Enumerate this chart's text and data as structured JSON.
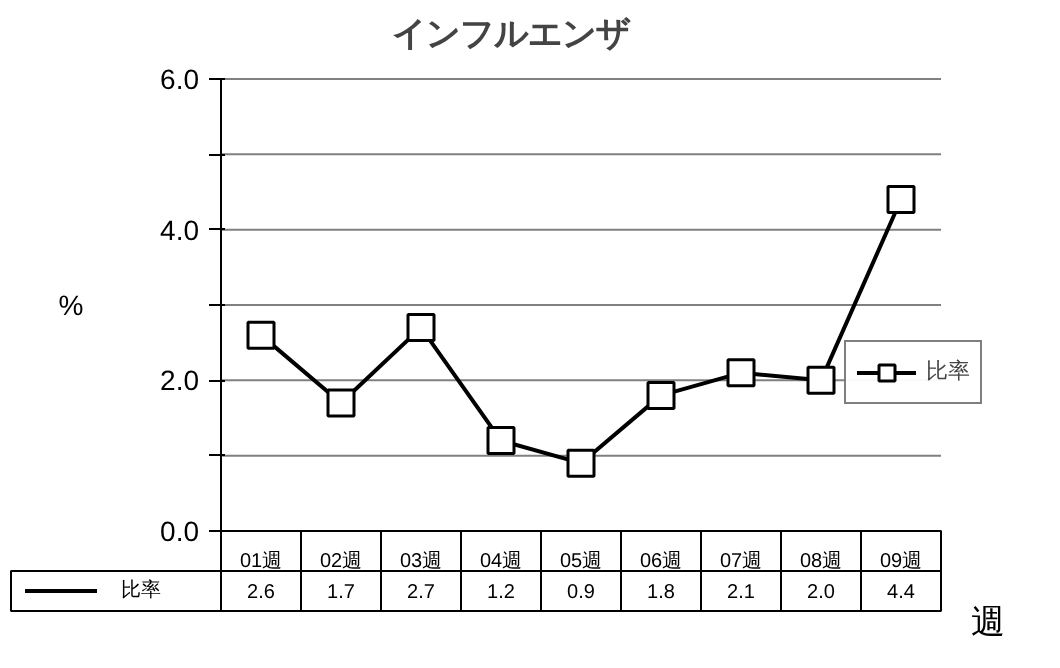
{
  "chart_data": {
    "type": "line",
    "title": "インフルエンザ",
    "xlabel": "週",
    "ylabel": "%",
    "categories": [
      "01週",
      "02週",
      "03週",
      "04週",
      "05週",
      "06週",
      "07週",
      "08週",
      "09週"
    ],
    "series": [
      {
        "name": "比率",
        "color": "#000000",
        "values": [
          2.6,
          1.7,
          2.7,
          1.2,
          0.9,
          1.8,
          2.1,
          2.0,
          4.4
        ],
        "value_labels": [
          "2.6",
          "1.7",
          "2.7",
          "1.2",
          "0.9",
          "1.8",
          "2.1",
          "2.0",
          "4.4"
        ]
      }
    ],
    "ylim": [
      0,
      6
    ],
    "yticks": [
      {
        "value": 0,
        "label": "0.0"
      },
      {
        "value": 1,
        "label": null
      },
      {
        "value": 2,
        "label": "2.0"
      },
      {
        "value": 3,
        "label": null
      },
      {
        "value": 4,
        "label": "4.0"
      },
      {
        "value": 5,
        "label": null
      },
      {
        "value": 6,
        "label": "6.0"
      }
    ],
    "grid": "y",
    "legend": "right",
    "marker": "square",
    "line_style": "solid"
  }
}
